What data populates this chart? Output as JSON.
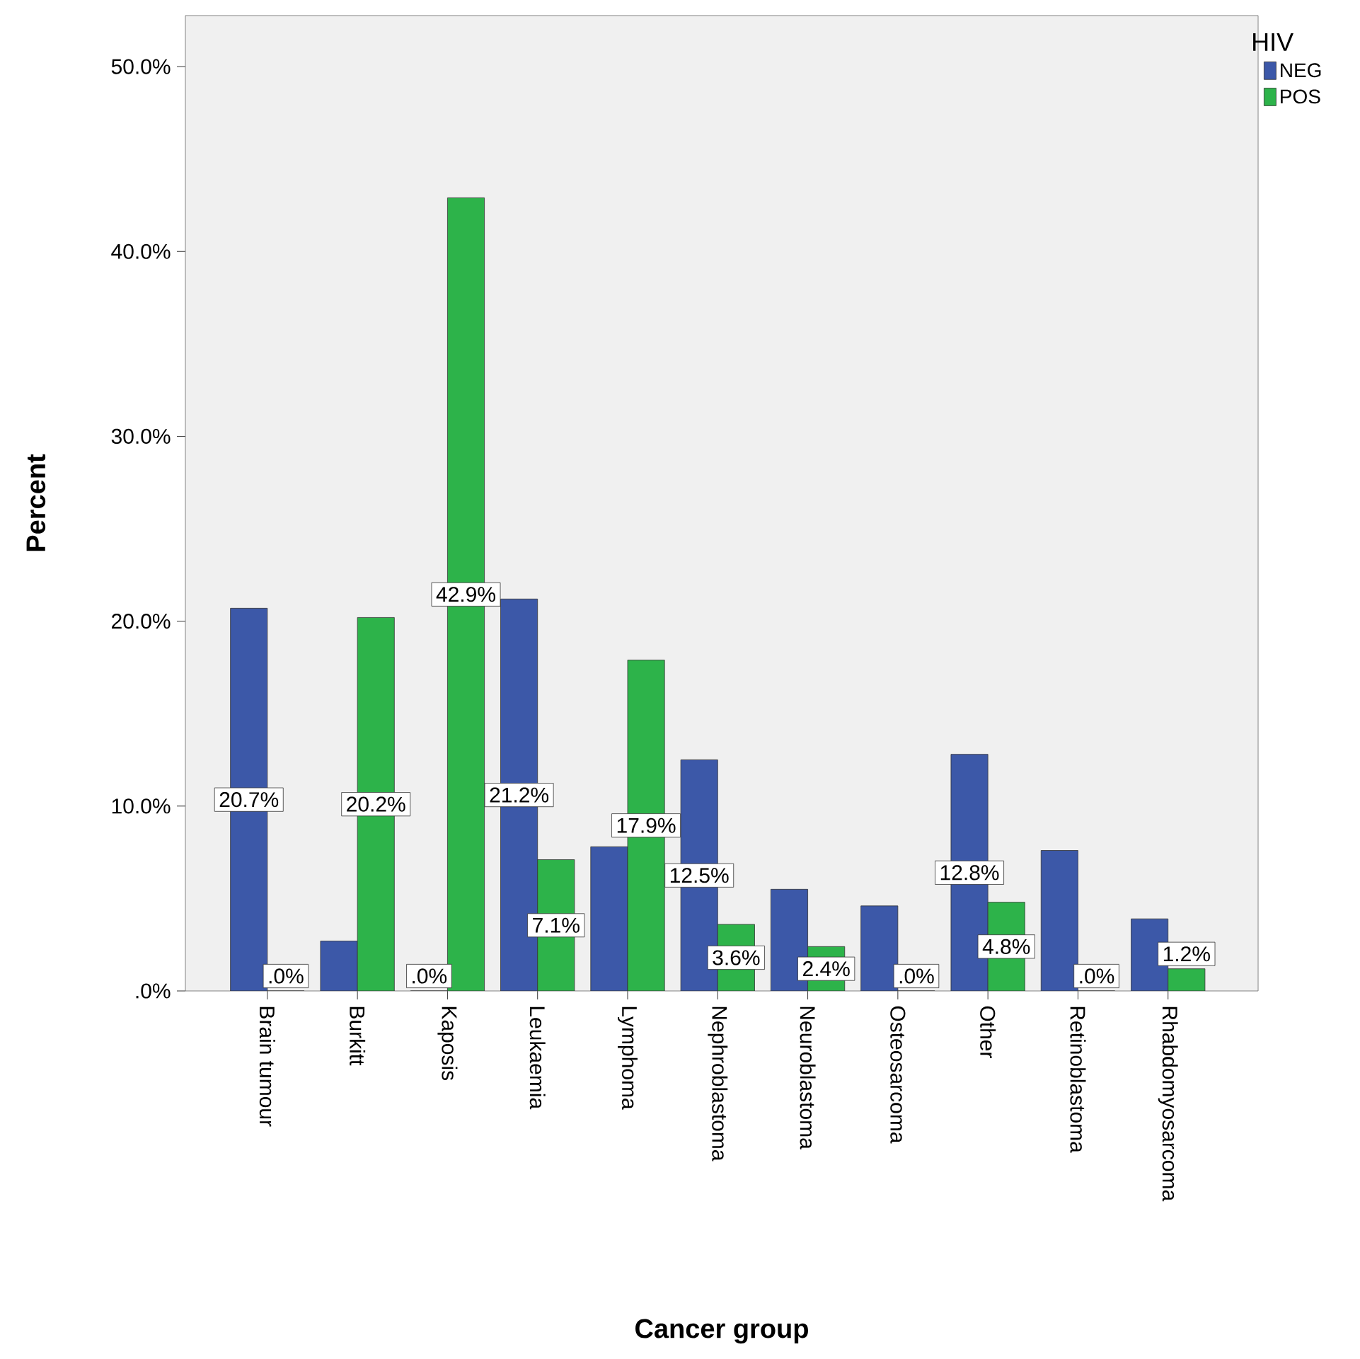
{
  "chart_data": {
    "type": "bar",
    "xlabel": "Cancer group",
    "ylabel": "Percent",
    "legend_title": "HIV",
    "legend": "top right",
    "categories": [
      "Brain tumour",
      "Burkitt",
      "Kaposis",
      "Leukaemia",
      "Lymphoma",
      "Nephroblastoma",
      "Neuroblastoma",
      "Osteosarcoma",
      "Other",
      "Retinoblastoma",
      "Rhabdomyosarcoma"
    ],
    "ylim": [
      0,
      52.76
    ],
    "yticks": [
      {
        "value": 0,
        "label": ".0%"
      },
      {
        "value": 10,
        "label": "10.0%"
      },
      {
        "value": 20,
        "label": "20.0%"
      },
      {
        "value": 30,
        "label": "30.0%"
      },
      {
        "value": 40,
        "label": "40.0%"
      },
      {
        "value": 50,
        "label": "50.0%"
      }
    ],
    "series": [
      {
        "name": "NEG",
        "color": "#3c58a8",
        "values": [
          20.7,
          2.7,
          0,
          21.2,
          7.8,
          12.5,
          5.5,
          4.6,
          12.8,
          7.6,
          3.9
        ],
        "value_labels": [
          "20.7%",
          null,
          ".0%",
          "21.2%",
          null,
          "12.5%",
          null,
          null,
          "12.8%",
          null,
          null
        ]
      },
      {
        "name": "POS",
        "color": "#2db34a",
        "values": [
          0,
          20.2,
          42.9,
          7.1,
          17.9,
          3.6,
          2.4,
          0,
          4.8,
          0,
          1.2
        ],
        "value_labels": [
          ".0%",
          "20.2%",
          "42.9%",
          "7.1%",
          "17.9%",
          "3.6%",
          "2.4%",
          ".0%",
          "4.8%",
          ".0%",
          "1.2%"
        ]
      }
    ]
  }
}
